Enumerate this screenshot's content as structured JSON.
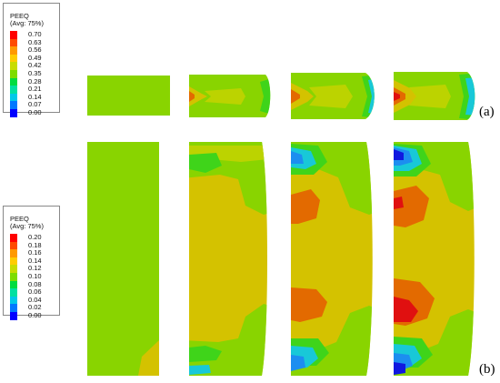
{
  "legend_a": {
    "title": "PEEQ",
    "subtitle": "(Avg: 75%)",
    "entries": [
      {
        "value": "0.70",
        "color": "#ff0000"
      },
      {
        "value": "0.63",
        "color": "#ff4a00"
      },
      {
        "value": "0.56",
        "color": "#ff9900"
      },
      {
        "value": "0.49",
        "color": "#ffcc00"
      },
      {
        "value": "0.42",
        "color": "#c8dc00"
      },
      {
        "value": "0.35",
        "color": "#7ddc00"
      },
      {
        "value": "0.28",
        "color": "#00dc40"
      },
      {
        "value": "0.21",
        "color": "#00e0a0"
      },
      {
        "value": "0.14",
        "color": "#00c8e8"
      },
      {
        "value": "0.07",
        "color": "#0078ff"
      },
      {
        "value": "0.00",
        "color": "#0000ff"
      }
    ]
  },
  "legend_b": {
    "title": "PEEQ",
    "subtitle": "(Avg: 75%)",
    "entries": [
      {
        "value": "0.20",
        "color": "#ff0000"
      },
      {
        "value": "0.18",
        "color": "#ff4a00"
      },
      {
        "value": "0.16",
        "color": "#ff9900"
      },
      {
        "value": "0.14",
        "color": "#ffcc00"
      },
      {
        "value": "0.12",
        "color": "#c8dc00"
      },
      {
        "value": "0.10",
        "color": "#7ddc00"
      },
      {
        "value": "0.08",
        "color": "#00dc40"
      },
      {
        "value": "0.06",
        "color": "#00e0a0"
      },
      {
        "value": "0.04",
        "color": "#00c8e8"
      },
      {
        "value": "0.02",
        "color": "#0078ff"
      },
      {
        "value": "0.00",
        "color": "#0000ff"
      }
    ]
  },
  "panel_labels": {
    "a": "(a)",
    "b": "(b)"
  },
  "colors": {
    "green": "#89d400",
    "yellow": "#d4c200",
    "orange": "#e36a00",
    "red": "#e01010",
    "lime": "#bcd300",
    "green2": "#3fd41a",
    "cyan": "#18c8d8",
    "sky": "#1c8ef0",
    "blue": "#1018e0"
  }
}
